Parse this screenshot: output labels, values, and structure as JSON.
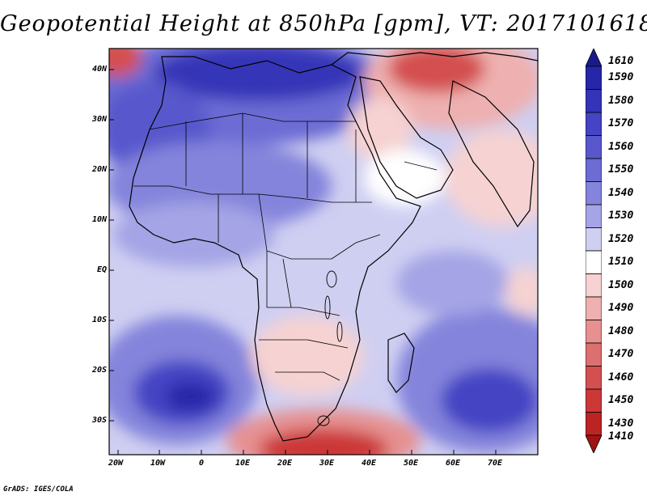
{
  "title": "Geopotential Height at 850hPa [gpm], VT: 2017101618",
  "latitude_labels": [
    "40N",
    "30N",
    "20N",
    "10N",
    "EQ",
    "10S",
    "20S",
    "30S"
  ],
  "longitude_labels": [
    "20W",
    "10W",
    "0",
    "10E",
    "20E",
    "30E",
    "40E",
    "50E",
    "60E",
    "70E"
  ],
  "colorbar": {
    "levels": [
      "1610",
      "1590",
      "1580",
      "1570",
      "1560",
      "1550",
      "1540",
      "1530",
      "1520",
      "1510",
      "1500",
      "1490",
      "1480",
      "1470",
      "1460",
      "1450",
      "1430",
      "1410"
    ],
    "colors": [
      "#1a1a8c",
      "#2626a8",
      "#3434b8",
      "#4444c4",
      "#5858cc",
      "#6c6cd4",
      "#8484dc",
      "#a4a4e6",
      "#cfcff2",
      "#ffffff",
      "#f6d2d2",
      "#eeb0b0",
      "#e69090",
      "#dc7070",
      "#d45050",
      "#cc3838",
      "#bc2424",
      "#a01414"
    ]
  },
  "credit": "GrADS: IGES/COLA"
}
